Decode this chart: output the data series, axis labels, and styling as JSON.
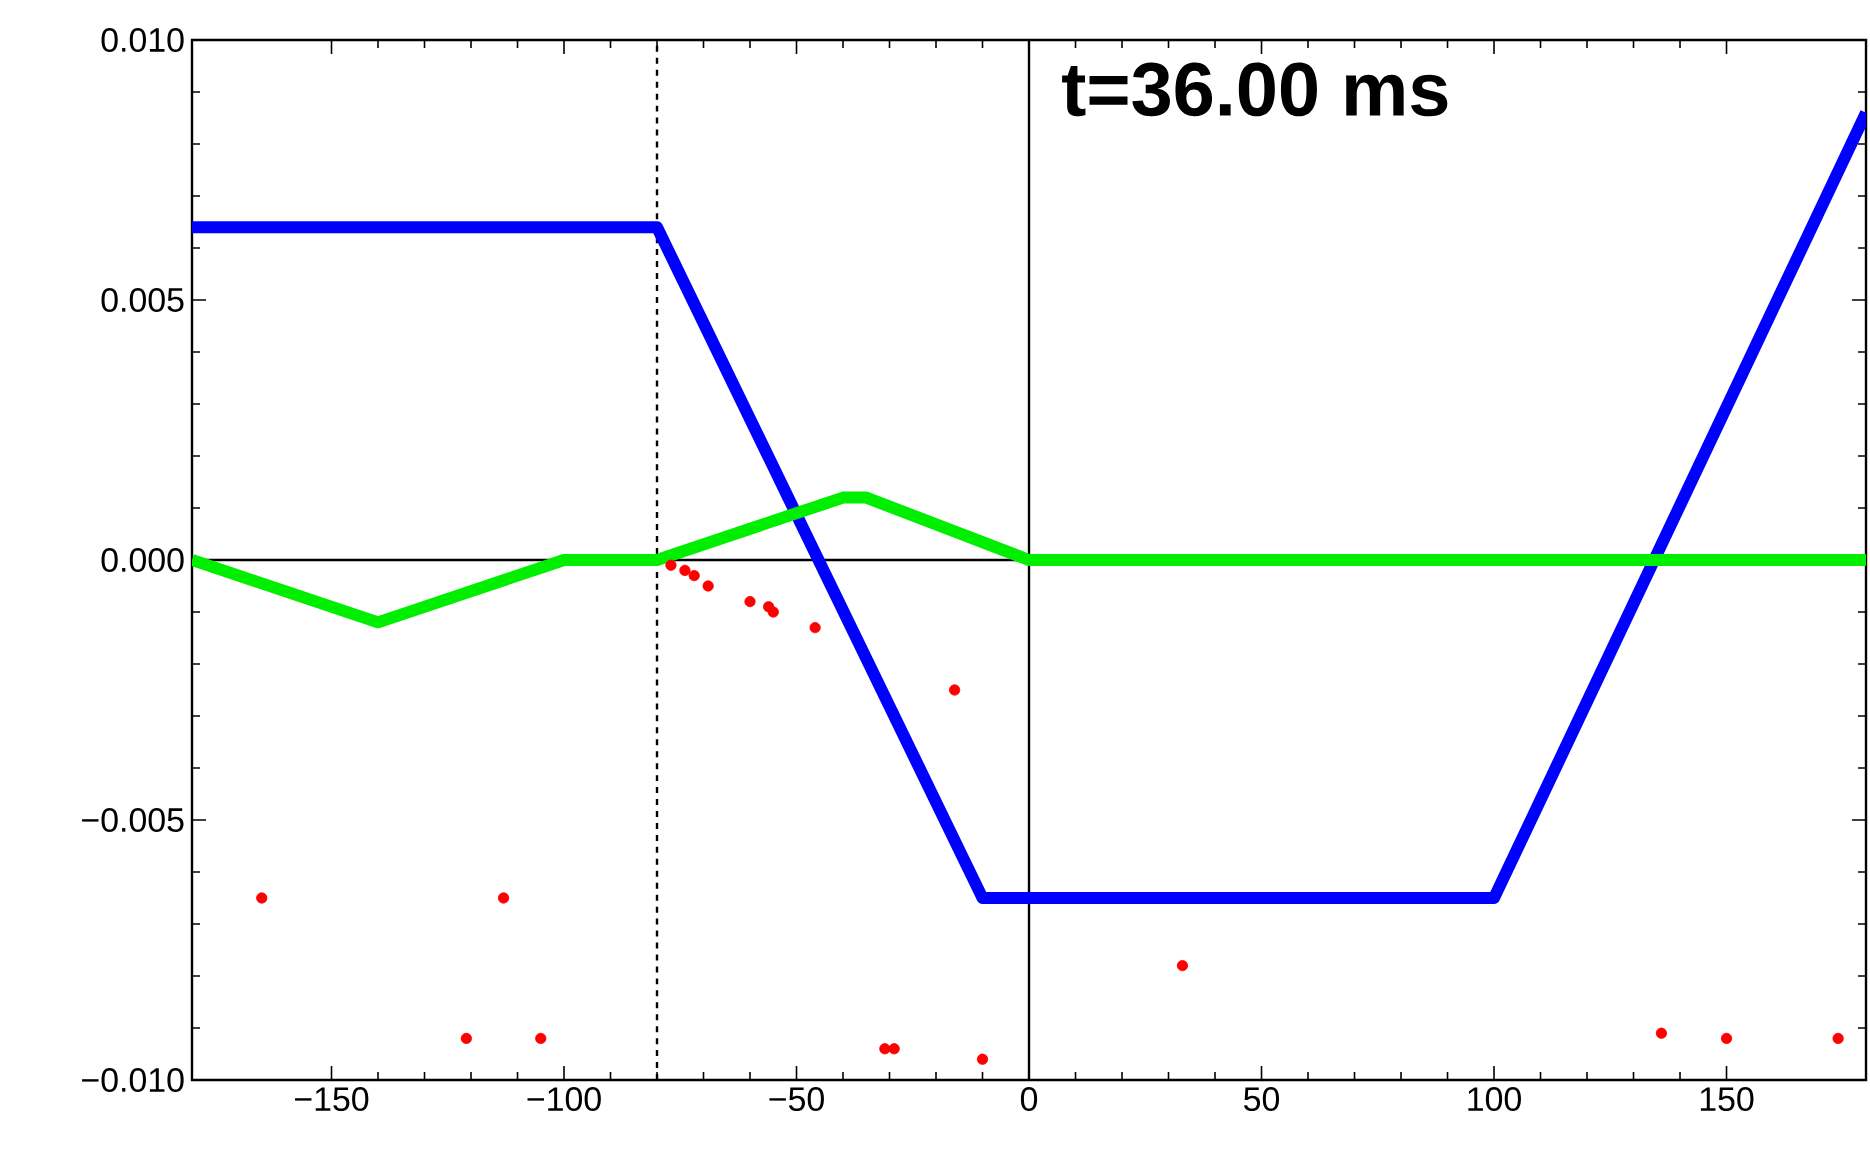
{
  "chart_data": {
    "type": "line",
    "xlim": [
      -180,
      180
    ],
    "ylim": [
      -0.01,
      0.01
    ],
    "xticks": [
      {
        "value": -150,
        "label": "−150"
      },
      {
        "value": -100,
        "label": "−100"
      },
      {
        "value": -50,
        "label": "−50"
      },
      0,
      50,
      100,
      150
    ],
    "yticks": [
      {
        "value": -0.01,
        "label": "−0.010"
      },
      {
        "value": -0.005,
        "label": "−0.005"
      },
      {
        "value": 0,
        "label": "0.000"
      },
      {
        "value": 0.005,
        "label": "0.005"
      },
      {
        "value": 0.01,
        "label": "0.010"
      }
    ],
    "grid": false,
    "annotations": [
      "t=36.00 ms"
    ],
    "ref_lines": [
      {
        "axis": "x",
        "value": -80,
        "line_style": "dashed",
        "color": "#000000"
      },
      {
        "axis": "x",
        "value": 0,
        "line_style": "solid",
        "color": "#000000"
      },
      {
        "axis": "y",
        "value": 0,
        "line_style": "solid",
        "color": "#000000"
      }
    ],
    "series": [
      {
        "color": "#0000ff",
        "line_style": "solid",
        "marker": "none",
        "x": [
          -180,
          -80,
          -10,
          100,
          180
        ],
        "values": [
          0.0064,
          0.0064,
          -0.0065,
          -0.0065,
          0.0086
        ]
      },
      {
        "color": "#00ee00",
        "line_style": "solid",
        "marker": "none",
        "x": [
          -180,
          -140,
          -100,
          -80,
          -40,
          -35,
          0,
          180
        ],
        "values": [
          0,
          -0.0012,
          0,
          0,
          0.0012,
          0.0012,
          0,
          0
        ]
      },
      {
        "type": "scatter",
        "color": "#ff0000",
        "marker": "circle",
        "x": [
          -165,
          -113,
          -121,
          -105,
          -77,
          -74,
          -72,
          -69,
          -60,
          -56,
          -55,
          -46,
          -16,
          -31,
          -29,
          -10,
          33,
          136,
          150,
          174
        ],
        "values": [
          -0.0065,
          -0.0065,
          -0.0092,
          -0.0092,
          -0.0001,
          -0.0002,
          -0.0003,
          -0.0005,
          -0.0008,
          -0.0009,
          -0.001,
          -0.0013,
          -0.0025,
          -0.0094,
          -0.0094,
          -0.0096,
          -0.0078,
          -0.0091,
          -0.0092,
          -0.0092
        ]
      }
    ]
  }
}
